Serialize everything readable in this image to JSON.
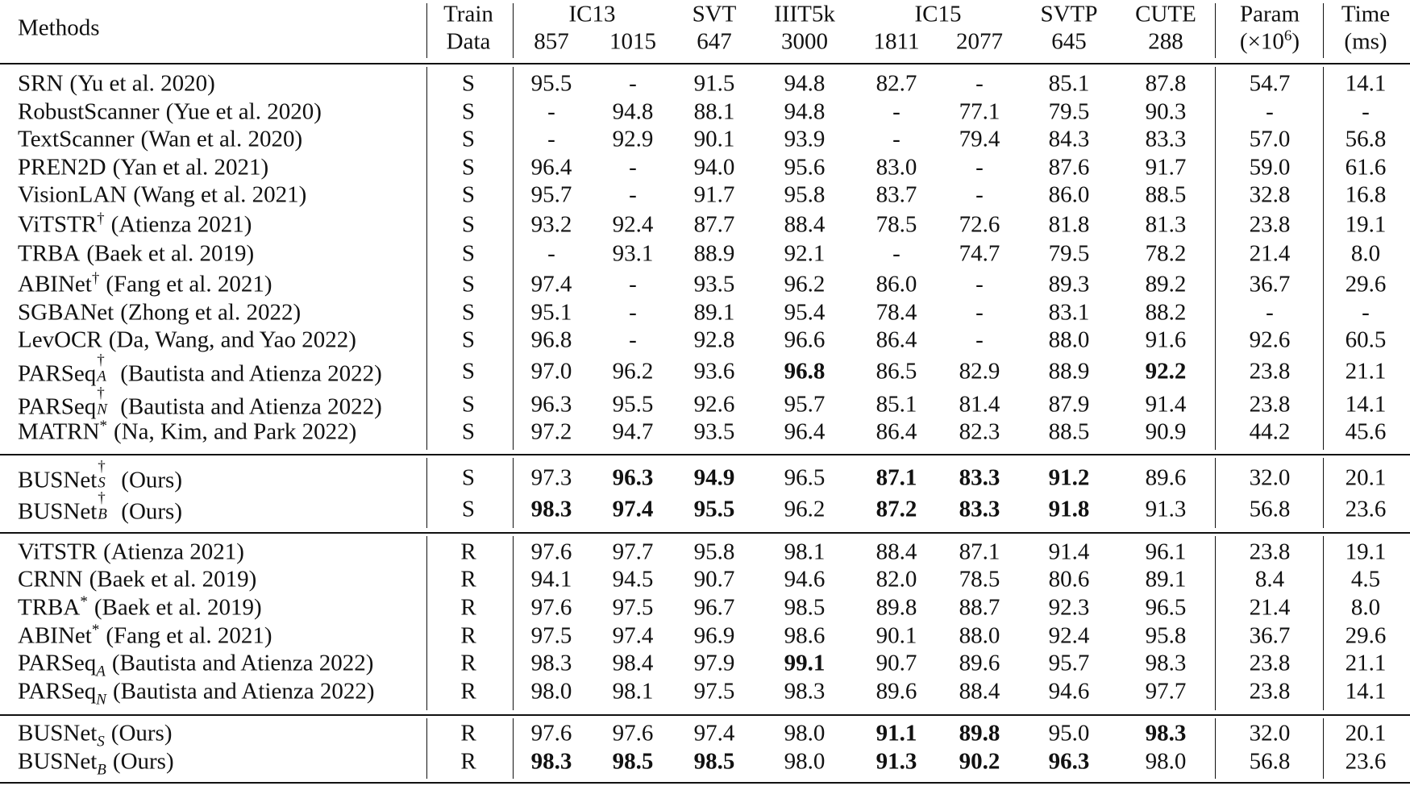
{
  "header": {
    "methods": "Methods",
    "train": [
      "Train",
      "Data"
    ],
    "groups": [
      {
        "label": "IC13",
        "cols": [
          "857",
          "1015"
        ]
      },
      {
        "label": "SVT",
        "cols": [
          "647"
        ]
      },
      {
        "label": "IIIT5k",
        "cols": [
          "3000"
        ]
      },
      {
        "label": "IC15",
        "cols": [
          "1811",
          "2077"
        ]
      },
      {
        "label": "SVTP",
        "cols": [
          "645"
        ]
      },
      {
        "label": "CUTE",
        "cols": [
          "288"
        ]
      }
    ],
    "param": {
      "label": "Param",
      "unit": "(×10",
      "exp": "6",
      "close": ")"
    },
    "time": [
      "Time",
      "(ms)"
    ]
  },
  "sections": [
    {
      "rows": [
        {
          "method": {
            "name": "SRN",
            "cite": "(Yu et al. 2020)"
          },
          "train": "S",
          "cells": [
            "95.5",
            "-",
            "91.5",
            "94.8",
            "82.7",
            "-",
            "85.1",
            "87.8",
            "54.7",
            "14.1"
          ]
        },
        {
          "method": {
            "name": "RobustScanner",
            "cite": "(Yue et al. 2020)"
          },
          "train": "S",
          "cells": [
            "-",
            "94.8",
            "88.1",
            "94.8",
            "-",
            "77.1",
            "79.5",
            "90.3",
            "-",
            "-"
          ]
        },
        {
          "method": {
            "name": "TextScanner",
            "cite": "(Wan et al. 2020)"
          },
          "train": "S",
          "cells": [
            "-",
            "92.9",
            "90.1",
            "93.9",
            "-",
            "79.4",
            "84.3",
            "83.3",
            "57.0",
            "56.8"
          ]
        },
        {
          "method": {
            "name": "PREN2D",
            "cite": "(Yan et al. 2021)"
          },
          "train": "S",
          "cells": [
            "96.4",
            "-",
            "94.0",
            "95.6",
            "83.0",
            "-",
            "87.6",
            "91.7",
            "59.0",
            "61.6"
          ]
        },
        {
          "method": {
            "name": "VisionLAN",
            "cite": "(Wang et al. 2021)"
          },
          "train": "S",
          "cells": [
            "95.7",
            "-",
            "91.7",
            "95.8",
            "83.7",
            "-",
            "86.0",
            "88.5",
            "32.8",
            "16.8"
          ]
        },
        {
          "method": {
            "name": "ViTSTR",
            "sup": "†",
            "cite": "(Atienza 2021)"
          },
          "train": "S",
          "cells": [
            "93.2",
            "92.4",
            "87.7",
            "88.4",
            "78.5",
            "72.6",
            "81.8",
            "81.3",
            "23.8",
            "19.1"
          ]
        },
        {
          "method": {
            "name": "TRBA",
            "cite": "(Baek et al. 2019)"
          },
          "train": "S",
          "cells": [
            "-",
            "93.1",
            "88.9",
            "92.1",
            "-",
            "74.7",
            "79.5",
            "78.2",
            "21.4",
            "8.0"
          ]
        },
        {
          "method": {
            "name": "ABINet",
            "sup": "†",
            "cite": "(Fang et al. 2021)"
          },
          "train": "S",
          "cells": [
            "97.4",
            "-",
            "93.5",
            "96.2",
            "86.0",
            "-",
            "89.3",
            "89.2",
            "36.7",
            "29.6"
          ]
        },
        {
          "method": {
            "name": "SGBANet",
            "cite": "(Zhong et al. 2022)"
          },
          "train": "S",
          "cells": [
            "95.1",
            "-",
            "89.1",
            "95.4",
            "78.4",
            "-",
            "83.1",
            "88.2",
            "-",
            "-"
          ]
        },
        {
          "method": {
            "name": "LevOCR",
            "cite": "(Da, Wang, and Yao 2022)"
          },
          "train": "S",
          "cells": [
            "96.8",
            "-",
            "92.8",
            "96.6",
            "86.4",
            "-",
            "88.0",
            "91.6",
            "92.6",
            "60.5"
          ]
        },
        {
          "method": {
            "name": "PARSeq",
            "sup": "†",
            "sub": "A",
            "cite": "(Bautista and Atienza 2022)"
          },
          "train": "S",
          "cells": [
            "97.0",
            "96.2",
            "93.6",
            {
              "text": "96.8",
              "bold": true
            },
            "86.5",
            "82.9",
            "88.9",
            {
              "text": "92.2",
              "bold": true
            },
            "23.8",
            "21.1"
          ]
        },
        {
          "method": {
            "name": "PARSeq",
            "sup": "†",
            "sub": "N",
            "cite": "(Bautista and Atienza 2022)"
          },
          "train": "S",
          "cells": [
            "96.3",
            "95.5",
            "92.6",
            "95.7",
            "85.1",
            "81.4",
            "87.9",
            "91.4",
            "23.8",
            "14.1"
          ]
        },
        {
          "method": {
            "name": "MATRN",
            "sup": "*",
            "cite": "(Na, Kim, and Park 2022)"
          },
          "train": "S",
          "cells": [
            "97.2",
            "94.7",
            "93.5",
            "96.4",
            "86.4",
            "82.3",
            "88.5",
            "90.9",
            "44.2",
            "45.6"
          ]
        }
      ]
    },
    {
      "rows": [
        {
          "method": {
            "name": "BUSNet",
            "sup": "†",
            "sub": "S",
            "cite": "(Ours)"
          },
          "train": "S",
          "cells": [
            "97.3",
            {
              "text": "96.3",
              "bold": true
            },
            {
              "text": "94.9",
              "bold": true
            },
            "96.5",
            {
              "text": "87.1",
              "bold": true
            },
            {
              "text": "83.3",
              "bold": true
            },
            {
              "text": "91.2",
              "bold": true
            },
            "89.6",
            "32.0",
            "20.1"
          ]
        },
        {
          "method": {
            "name": "BUSNet",
            "sup": "†",
            "sub": "B",
            "cite": "(Ours)"
          },
          "train": "S",
          "cells": [
            {
              "text": "98.3",
              "bold": true
            },
            {
              "text": "97.4",
              "bold": true
            },
            {
              "text": "95.5",
              "bold": true
            },
            "96.2",
            {
              "text": "87.2",
              "bold": true
            },
            {
              "text": "83.3",
              "bold": true
            },
            {
              "text": "91.8",
              "bold": true
            },
            "91.3",
            "56.8",
            "23.6"
          ]
        }
      ]
    },
    {
      "rows": [
        {
          "method": {
            "name": "ViTSTR",
            "cite": "(Atienza 2021)"
          },
          "train": "R",
          "cells": [
            "97.6",
            "97.7",
            "95.8",
            "98.1",
            "88.4",
            "87.1",
            "91.4",
            "96.1",
            "23.8",
            "19.1"
          ]
        },
        {
          "method": {
            "name": "CRNN",
            "cite": "(Baek et al. 2019)"
          },
          "train": "R",
          "cells": [
            "94.1",
            "94.5",
            "90.7",
            "94.6",
            "82.0",
            "78.5",
            "80.6",
            "89.1",
            "8.4",
            "4.5"
          ]
        },
        {
          "method": {
            "name": "TRBA",
            "sup": "*",
            "cite": "(Baek et al. 2019)"
          },
          "train": "R",
          "cells": [
            "97.6",
            "97.5",
            "96.7",
            "98.5",
            "89.8",
            "88.7",
            "92.3",
            "96.5",
            "21.4",
            "8.0"
          ]
        },
        {
          "method": {
            "name": "ABINet",
            "sup": "*",
            "cite": "(Fang et al. 2021)"
          },
          "train": "R",
          "cells": [
            "97.5",
            "97.4",
            "96.9",
            "98.6",
            "90.1",
            "88.0",
            "92.4",
            "95.8",
            "36.7",
            "29.6"
          ]
        },
        {
          "method": {
            "name": "PARSeq",
            "sub": "A",
            "cite": "(Bautista and Atienza 2022)"
          },
          "train": "R",
          "cells": [
            "98.3",
            "98.4",
            "97.9",
            {
              "text": "99.1",
              "bold": true
            },
            "90.7",
            "89.6",
            "95.7",
            "98.3",
            "23.8",
            "21.1"
          ]
        },
        {
          "method": {
            "name": "PARSeq",
            "sub": "N",
            "cite": "(Bautista and Atienza 2022)"
          },
          "train": "R",
          "cells": [
            "98.0",
            "98.1",
            "97.5",
            "98.3",
            "89.6",
            "88.4",
            "94.6",
            "97.7",
            "23.8",
            "14.1"
          ]
        }
      ]
    },
    {
      "rows": [
        {
          "method": {
            "name": "BUSNet",
            "sub": "S",
            "cite": "(Ours)"
          },
          "train": "R",
          "cells": [
            "97.6",
            "97.6",
            "97.4",
            "98.0",
            {
              "text": "91.1",
              "bold": true
            },
            {
              "text": "89.8",
              "bold": true
            },
            "95.0",
            {
              "text": "98.3",
              "bold": true
            },
            "32.0",
            "20.1"
          ]
        },
        {
          "method": {
            "name": "BUSNet",
            "sub": "B",
            "cite": "(Ours)"
          },
          "train": "R",
          "cells": [
            {
              "text": "98.3",
              "bold": true
            },
            {
              "text": "98.5",
              "bold": true
            },
            {
              "text": "98.5",
              "bold": true
            },
            "98.0",
            {
              "text": "91.3",
              "bold": true
            },
            {
              "text": "90.2",
              "bold": true
            },
            {
              "text": "96.3",
              "bold": true
            },
            "98.0",
            "56.8",
            "23.6"
          ]
        }
      ]
    }
  ]
}
